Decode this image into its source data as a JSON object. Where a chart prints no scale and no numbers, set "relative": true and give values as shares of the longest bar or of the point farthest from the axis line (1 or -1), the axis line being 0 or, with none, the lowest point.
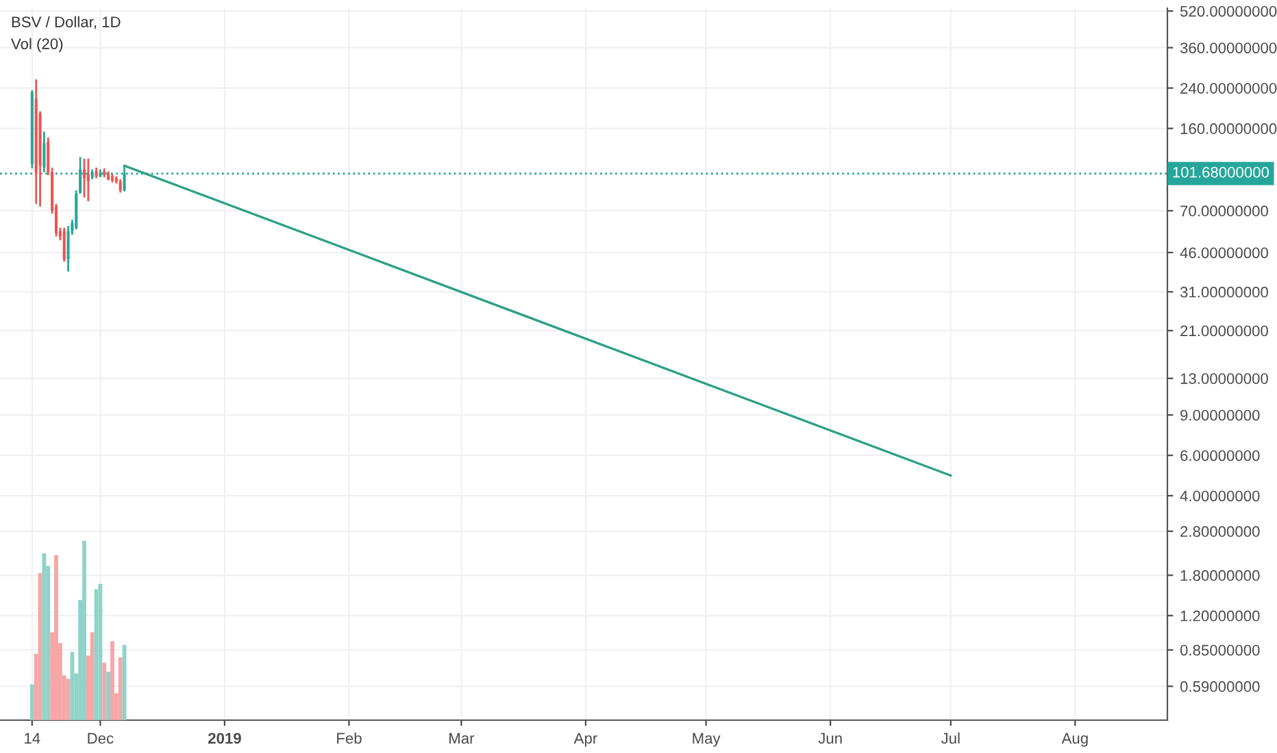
{
  "chart_data": [
    {
      "type": "candlestick",
      "title": "BSV / Dollar, 1D",
      "x": [
        "2018-11-14",
        "2018-11-15",
        "2018-11-16",
        "2018-11-17",
        "2018-11-18",
        "2018-11-19",
        "2018-11-20",
        "2018-11-21",
        "2018-11-22",
        "2018-11-23",
        "2018-11-24",
        "2018-11-25",
        "2018-11-26",
        "2018-11-27",
        "2018-11-28",
        "2018-11-29",
        "2018-11-30",
        "2018-12-01",
        "2018-12-02",
        "2018-12-03",
        "2018-12-04",
        "2018-12-05",
        "2018-12-06",
        "2018-12-07"
      ],
      "ohlc": [
        [
          112,
          235,
          107,
          230
        ],
        [
          215,
          262,
          75,
          103
        ],
        [
          186,
          190,
          73,
          110
        ],
        [
          108,
          155,
          103,
          138
        ],
        [
          140,
          146,
          100,
          103
        ],
        [
          103,
          108,
          68,
          70
        ],
        [
          73,
          75,
          54,
          56
        ],
        [
          57,
          59,
          52,
          54
        ],
        [
          57,
          59,
          42,
          43
        ],
        [
          43,
          60,
          38,
          57
        ],
        [
          57,
          64,
          55,
          62
        ],
        [
          59,
          86,
          58,
          83
        ],
        [
          84,
          120,
          83,
          106
        ],
        [
          106,
          118,
          80,
          97
        ],
        [
          101,
          118,
          77,
          94
        ],
        [
          98,
          106,
          96,
          103
        ],
        [
          104,
          108,
          97,
          99
        ],
        [
          99,
          106,
          98,
          102
        ],
        [
          104,
          107,
          98,
          100
        ],
        [
          101,
          104,
          95,
          96
        ],
        [
          99,
          101,
          93,
          95
        ],
        [
          97,
          99,
          92,
          94
        ],
        [
          94,
          96,
          84,
          86
        ],
        [
          86,
          110,
          85,
          101.68
        ]
      ],
      "colors": [
        "#26a69a",
        "#ef5350",
        "#ef5350",
        "#26a69a",
        "#ef5350",
        "#ef5350",
        "#ef5350",
        "#ef5350",
        "#ef5350",
        "#26a69a",
        "#26a69a",
        "#26a69a",
        "#26a69a",
        "#ef5350",
        "#ef5350",
        "#26a69a",
        "#ef5350",
        "#26a69a",
        "#ef5350",
        "#ef5350",
        "#ef5350",
        "#ef5350",
        "#ef5350",
        "#26a69a"
      ],
      "series": [
        {
          "type": "line",
          "x": [
            "2018-12-07",
            "2019-07-01"
          ],
          "values": [
            110,
            4.9
          ],
          "color": "#2e9e86"
        }
      ],
      "log": "y",
      "ylim": [
        0.42,
        535
      ],
      "yticks": [
        {
          "value": 520,
          "label": "520.00000000"
        },
        {
          "value": 360,
          "label": "360.00000000"
        },
        {
          "value": 240,
          "label": "240.00000000"
        },
        {
          "value": 160,
          "label": "160.00000000"
        },
        {
          "value": 70,
          "label": "70.00000000"
        },
        {
          "value": 46,
          "label": "46.00000000"
        },
        {
          "value": 31,
          "label": "31.00000000"
        },
        {
          "value": 21,
          "label": "21.00000000"
        },
        {
          "value": 13,
          "label": "13.00000000"
        },
        {
          "value": 9,
          "label": "9.00000000"
        },
        {
          "value": 6,
          "label": "6.00000000"
        },
        {
          "value": 4,
          "label": "4.00000000"
        },
        {
          "value": 2.8,
          "label": "2.80000000"
        },
        {
          "value": 1.8,
          "label": "1.80000000"
        },
        {
          "value": 1.2,
          "label": "1.20000000"
        },
        {
          "value": 0.85,
          "label": "0.85000000"
        },
        {
          "value": 0.59,
          "label": "0.59000000"
        }
      ],
      "xlim": [
        "2018-11-06",
        "2019-08-24"
      ],
      "xticks": [
        {
          "value": "2018-11-14",
          "label": "14"
        },
        {
          "value": "2018-12-01",
          "label": "Dec"
        },
        {
          "value": "2019-01-01",
          "label": "2019"
        },
        {
          "value": "2019-02-01",
          "label": "Feb"
        },
        {
          "value": "2019-03-01",
          "label": "Mar"
        },
        {
          "value": "2019-04-01",
          "label": "Apr"
        },
        {
          "value": "2019-05-01",
          "label": "May"
        },
        {
          "value": "2019-06-01",
          "label": "Jun"
        },
        {
          "value": "2019-07-01",
          "label": "Jul"
        },
        {
          "value": "2019-08-01",
          "label": "Aug"
        }
      ],
      "ref_lines": [
        {
          "axis": "y",
          "value": 101.68,
          "label": "101.68000000",
          "color": "#26a69a",
          "line_style": "dotted"
        }
      ],
      "grid": true
    },
    {
      "type": "bar",
      "title": "Vol (20)",
      "relative": true,
      "tick_labels": false,
      "x": [
        "2018-11-14",
        "2018-11-15",
        "2018-11-16",
        "2018-11-17",
        "2018-11-18",
        "2018-11-19",
        "2018-11-20",
        "2018-11-21",
        "2018-11-22",
        "2018-11-23",
        "2018-11-24",
        "2018-11-25",
        "2018-11-26",
        "2018-11-27",
        "2018-11-28",
        "2018-11-29",
        "2018-11-30",
        "2018-12-01",
        "2018-12-02",
        "2018-12-03",
        "2018-12-04",
        "2018-12-05",
        "2018-12-06",
        "2018-12-07"
      ],
      "values": [
        0.2,
        0.37,
        0.82,
        0.93,
        0.86,
        0.49,
        0.92,
        0.43,
        0.25,
        0.23,
        0.38,
        0.26,
        0.67,
        1.0,
        0.36,
        0.49,
        0.73,
        0.76,
        0.32,
        0.27,
        0.44,
        0.15,
        0.35,
        0.42
      ],
      "colors": [
        "#8fd3c9",
        "#f6a6a6",
        "#f6a6a6",
        "#8fd3c9",
        "#8fd3c9",
        "#f6a6a6",
        "#f6a6a6",
        "#f6a6a6",
        "#f6a6a6",
        "#f6a6a6",
        "#8fd3c9",
        "#8fd3c9",
        "#8fd3c9",
        "#8fd3c9",
        "#f6a6a6",
        "#f6a6a6",
        "#8fd3c9",
        "#8fd3c9",
        "#f6a6a6",
        "#8fd3c9",
        "#f6a6a6",
        "#f6a6a6",
        "#f6a6a6",
        "#8fd3c9"
      ],
      "xlim": [
        "2018-11-06",
        "2019-08-24"
      ]
    }
  ]
}
